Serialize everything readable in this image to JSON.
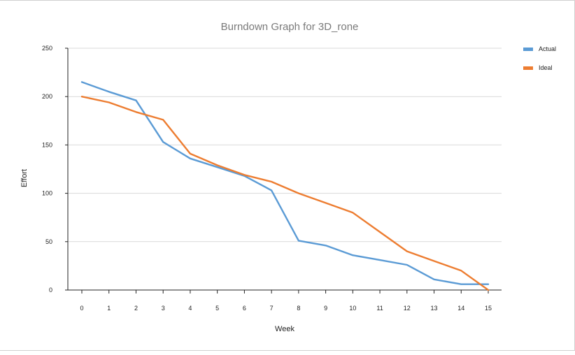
{
  "chart_data": {
    "type": "line",
    "title": "Burndown Graph for 3D_rone",
    "xlabel": "Week",
    "ylabel": "Effort",
    "x": [
      0,
      1,
      2,
      3,
      4,
      5,
      6,
      7,
      8,
      9,
      10,
      11,
      12,
      13,
      14,
      15
    ],
    "xticks": [
      "0",
      "1",
      "2",
      "3",
      "4",
      "5",
      "6",
      "7",
      "8",
      "9",
      "10",
      "11",
      "12",
      "13",
      "14",
      "15"
    ],
    "ylim": [
      0,
      250
    ],
    "yticks": [
      "0",
      "50",
      "100",
      "150",
      "200",
      "250"
    ],
    "grid": "horizontal",
    "legend_position": "right",
    "series": [
      {
        "name": "Actual",
        "color": "#5b9bd5",
        "values": [
          215,
          205,
          196,
          153,
          136,
          127,
          118,
          103,
          51,
          46,
          36,
          31,
          26,
          11,
          6,
          6
        ]
      },
      {
        "name": "Ideal",
        "color": "#ed7d31",
        "values": [
          200,
          194,
          184,
          176,
          141,
          129,
          119,
          112,
          100,
          90,
          80,
          60,
          40,
          30,
          20,
          0
        ]
      }
    ]
  }
}
